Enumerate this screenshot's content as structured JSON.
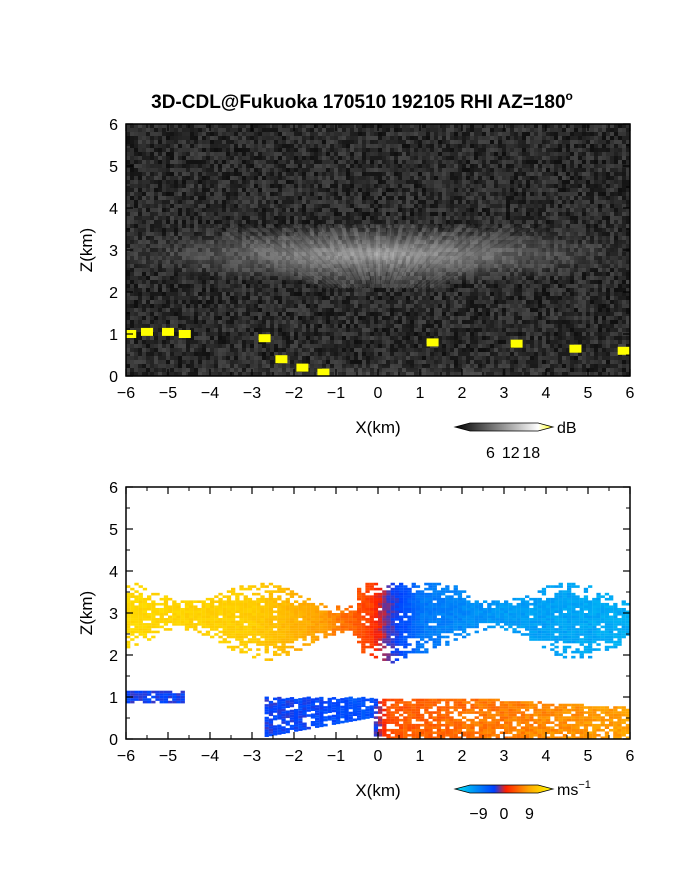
{
  "title": "3D-CDL@Fukuoka 170510 192105 RHI AZ=180",
  "title_sup": "o",
  "chart_data": [
    {
      "type": "heatmap",
      "panel": "top",
      "quantity": "backscatter intensity",
      "xlabel": "X(km)",
      "ylabel": "Z(km)",
      "xlim": [
        -6,
        6
      ],
      "ylim": [
        0,
        6
      ],
      "x_ticks": [
        -6,
        -5,
        -4,
        -3,
        -2,
        -1,
        0,
        1,
        2,
        3,
        4,
        5,
        6
      ],
      "y_ticks": [
        0,
        1,
        2,
        3,
        4,
        5,
        6
      ],
      "background_color": "#1e1e1e",
      "layers": [
        {
          "name": "cloud layer",
          "x_range": [
            -6,
            6
          ],
          "z_range": [
            2.1,
            3.6
          ],
          "peak_z": 2.9
        },
        {
          "name": "low layer",
          "x_range": [
            -2.5,
            6
          ],
          "z_range": [
            0,
            0.8
          ],
          "peak_z": 0.3
        }
      ],
      "colorbar": {
        "unit": "dB",
        "ticks": [
          6,
          12,
          18
        ],
        "range": [
          0,
          20
        ],
        "colors": [
          "#000000",
          "#ffffff",
          "#ffff00"
        ]
      },
      "saturated_points": [
        [
          -5.9,
          1.0
        ],
        [
          -5.5,
          1.05
        ],
        [
          -5.0,
          1.05
        ],
        [
          -4.6,
          1.0
        ],
        [
          -2.7,
          0.9
        ],
        [
          -2.3,
          0.4
        ],
        [
          -1.8,
          0.2
        ],
        [
          -1.3,
          0.08
        ],
        [
          1.3,
          0.8
        ],
        [
          3.3,
          0.77
        ],
        [
          4.7,
          0.65
        ],
        [
          5.85,
          0.6
        ]
      ]
    },
    {
      "type": "heatmap",
      "panel": "bottom",
      "quantity": "radial velocity",
      "xlabel": "X(km)",
      "ylabel": "Z(km)",
      "xlim": [
        -6,
        6
      ],
      "ylim": [
        0,
        6
      ],
      "x_ticks": [
        -6,
        -5,
        -4,
        -3,
        -2,
        -1,
        0,
        1,
        2,
        3,
        4,
        5,
        6
      ],
      "y_ticks": [
        0,
        1,
        2,
        3,
        4,
        5,
        6
      ],
      "upper_layer": {
        "z_range": [
          1.8,
          3.7
        ],
        "velocity_at_x": [
          [
            -6,
            9
          ],
          [
            -3,
            8
          ],
          [
            -1.5,
            5
          ],
          [
            -0.2,
            1
          ],
          [
            0.2,
            -2
          ],
          [
            1,
            -6
          ],
          [
            3,
            -8
          ],
          [
            6,
            -9
          ]
        ]
      },
      "lower_layer": {
        "z_range": [
          0,
          1.2
        ],
        "velocity_at_x": [
          [
            -6,
            -3
          ],
          [
            -2.5,
            -3
          ],
          [
            -0.2,
            -4
          ],
          [
            0.2,
            2
          ],
          [
            2,
            3
          ],
          [
            4,
            4
          ],
          [
            6,
            5
          ]
        ]
      },
      "colorbar": {
        "unit": "ms",
        "unit_sup": "−1",
        "ticks": [
          "−9",
          "0",
          "9"
        ],
        "tick_values": [
          -9,
          0,
          9
        ],
        "range": [
          -12,
          12
        ],
        "colors": [
          "#00e5f0",
          "#0040ff",
          "#ff2000",
          "#ffa500",
          "#ffff00"
        ]
      }
    }
  ]
}
